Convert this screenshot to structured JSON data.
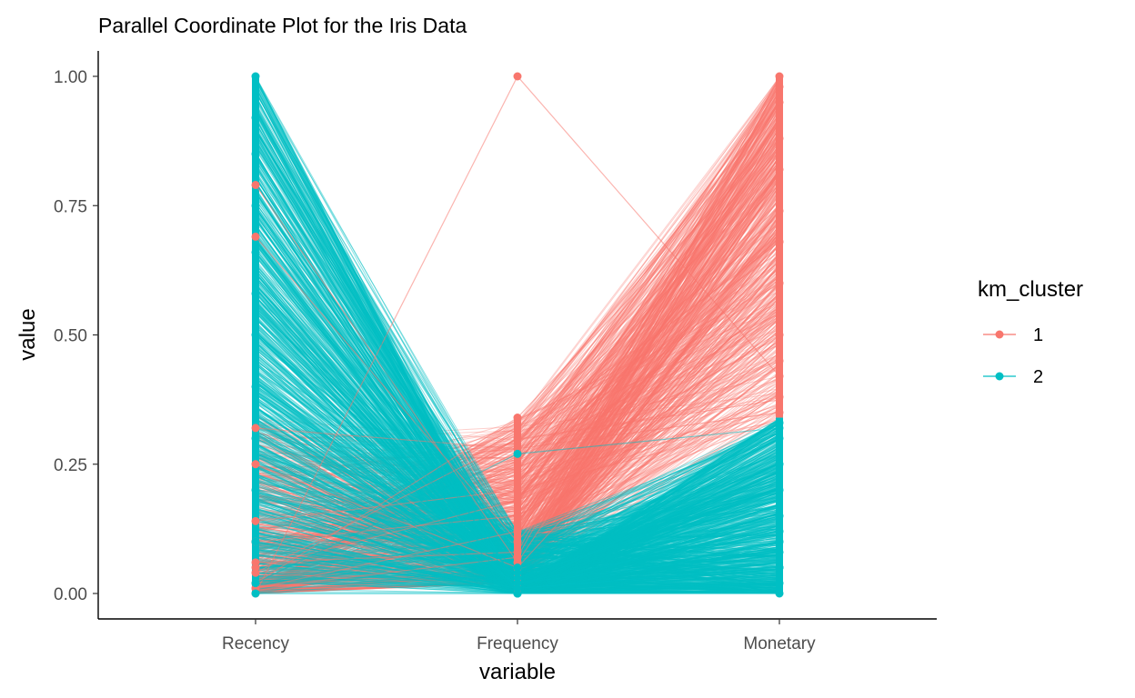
{
  "chart_data": {
    "type": "line",
    "title": "Parallel Coordinate Plot for the Iris Data",
    "xlabel": "variable",
    "ylabel": "value",
    "categories": [
      "Recency",
      "Frequency",
      "Monetary"
    ],
    "ylim": [
      0,
      1
    ],
    "yticks": [
      "0.00",
      "0.25",
      "0.50",
      "0.75",
      "1.00"
    ],
    "grid": false,
    "legend": {
      "title": "km_cluster",
      "placement": "right",
      "entries": [
        {
          "label": "1",
          "color": "#F8766D"
        },
        {
          "label": "2",
          "color": "#00BFC4"
        }
      ]
    },
    "series": [
      {
        "name": "1",
        "color": "#F8766D",
        "profiles": [
          [
            0.79,
            0.06,
            0.82
          ],
          [
            0.69,
            0.1,
            0.74
          ],
          [
            0.32,
            0.28,
            0.35
          ],
          [
            0.06,
            0.08,
            1.0
          ],
          [
            0.01,
            0.12,
            0.95
          ],
          [
            0.0,
            1.0,
            0.42
          ],
          [
            0.25,
            0.05,
            0.6
          ],
          [
            0.14,
            0.2,
            0.5
          ],
          [
            0.04,
            0.3,
            0.68
          ],
          [
            0.02,
            0.34,
            0.88
          ],
          [
            0.1,
            0.15,
            0.45
          ],
          [
            0.01,
            0.07,
            0.98
          ],
          [
            0.05,
            0.18,
            0.38
          ]
        ]
      },
      {
        "name": "2",
        "color": "#00BFC4",
        "profiles": [
          [
            1.0,
            0.0,
            0.02
          ],
          [
            0.92,
            0.01,
            0.05
          ],
          [
            0.85,
            0.0,
            0.1
          ],
          [
            0.75,
            0.02,
            0.08
          ],
          [
            0.66,
            0.0,
            0.15
          ],
          [
            0.58,
            0.03,
            0.2
          ],
          [
            0.5,
            0.01,
            0.25
          ],
          [
            0.4,
            0.05,
            0.3
          ],
          [
            0.3,
            0.02,
            0.12
          ],
          [
            0.2,
            0.04,
            0.33
          ],
          [
            0.1,
            0.01,
            0.05
          ],
          [
            0.02,
            0.27,
            0.32
          ],
          [
            0.0,
            0.0,
            0.0
          ]
        ]
      }
    ]
  }
}
